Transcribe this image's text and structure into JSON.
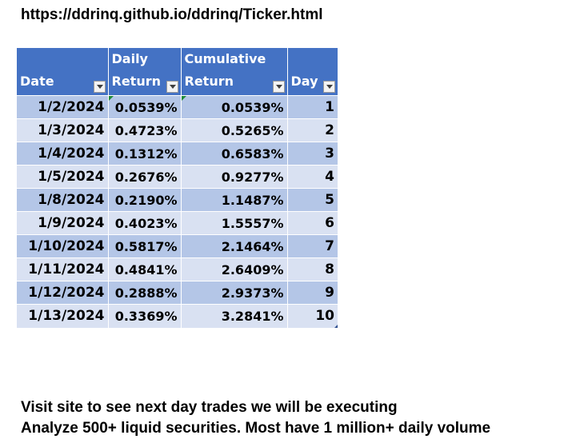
{
  "url": "https://ddrinq.github.io/ddrinq/Ticker.html",
  "table": {
    "headers": [
      {
        "line1": "",
        "line2": "Date"
      },
      {
        "line1": "Daily",
        "line2": "Return"
      },
      {
        "line1": "Cumulative",
        "line2": "Return"
      },
      {
        "line1": "",
        "line2": "Day"
      }
    ],
    "rows": [
      {
        "date": "1/2/2024",
        "daily": "0.0539%",
        "cumulative": "0.0539%",
        "day": "1"
      },
      {
        "date": "1/3/2024",
        "daily": "0.4723%",
        "cumulative": "0.5265%",
        "day": "2"
      },
      {
        "date": "1/4/2024",
        "daily": "0.1312%",
        "cumulative": "0.6583%",
        "day": "3"
      },
      {
        "date": "1/5/2024",
        "daily": "0.2676%",
        "cumulative": "0.9277%",
        "day": "4"
      },
      {
        "date": "1/8/2024",
        "daily": "0.2190%",
        "cumulative": "1.1487%",
        "day": "5"
      },
      {
        "date": "1/9/2024",
        "daily": "0.4023%",
        "cumulative": "1.5557%",
        "day": "6"
      },
      {
        "date": "1/10/2024",
        "daily": "0.5817%",
        "cumulative": "2.1464%",
        "day": "7"
      },
      {
        "date": "1/11/2024",
        "daily": "0.4841%",
        "cumulative": "2.6409%",
        "day": "8"
      },
      {
        "date": "1/12/2024",
        "daily": "0.2888%",
        "cumulative": "2.9373%",
        "day": "9"
      },
      {
        "date": "1/13/2024",
        "daily": "0.3369%",
        "cumulative": "3.2841%",
        "day": "10"
      }
    ]
  },
  "footer": {
    "line1": "Visit site to see next day trades we will be executing",
    "line2": "Analyze 500+ liquid securities.  Most have 1 million+ daily volume"
  },
  "colors": {
    "header_bg": "#4472c4",
    "row_odd": "#b4c6e7",
    "row_even": "#d9e1f2"
  },
  "icons": [
    "filter-dropdown-icon",
    "error-indicator-icon",
    "table-resize-handle-icon"
  ]
}
